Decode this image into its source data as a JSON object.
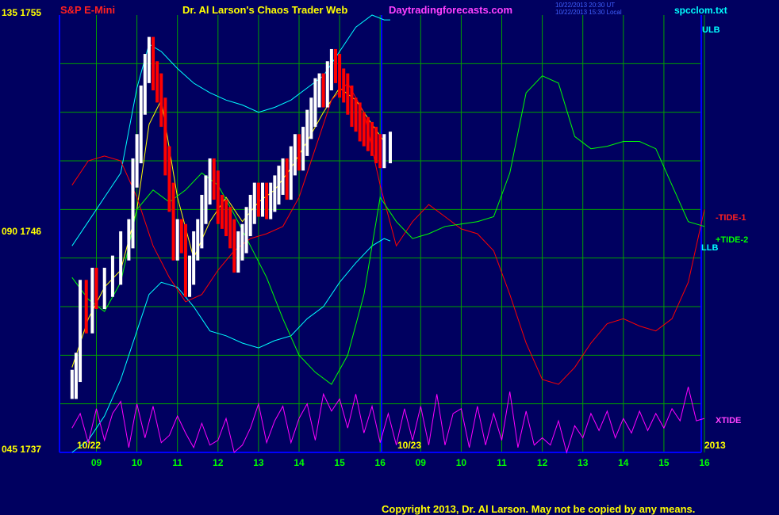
{
  "header": {
    "symbol": "S&P E-Mini",
    "title": "Dr. Al Larson's Chaos Trader Web",
    "site": "Daytradingforecasts.com",
    "stamp_line1": "10/22/2013 20:30 UT",
    "stamp_line2": "10/22/2013 15:30 Local",
    "file": "spcclom.txt"
  },
  "y_axis": {
    "top_label": "135 1755",
    "mid_label": "090 1746",
    "bottom_label": "045 1737"
  },
  "x_axis": {
    "date_left": "10/22",
    "date_mid": "10/23",
    "year": "2013",
    "hour_ticks": [
      "09",
      "10",
      "11",
      "12",
      "13",
      "14",
      "15",
      "16",
      "09",
      "10",
      "11",
      "12",
      "13",
      "14",
      "15",
      "16"
    ]
  },
  "right_labels": {
    "ulb": "ULB",
    "tide1": "-TIDE-1",
    "tide2": "+TIDE-2",
    "llb": "LLB",
    "xtide": "XTIDE"
  },
  "footer": {
    "copyright": "Copyright 2013, Dr. Al Larson. May not be copied by any means."
  },
  "colors": {
    "background": "#000060",
    "grid": "#00a000",
    "axis": "#0000ff",
    "price_up": "#ffffff",
    "price_down": "#ff0000",
    "tide1": "#ff0000",
    "tide2": "#00ff00",
    "bands": "#00ffff",
    "average": "#ffff00",
    "xtide": "#ff00ff"
  },
  "chart_data": {
    "type": "line",
    "title": "S&P E-Mini",
    "x_unit": "hour of trading session (two sessions: 10/22 and 10/23/2013)",
    "ylim": [
      1737,
      1755
    ],
    "price_series": {
      "name": "S&P E-Mini price",
      "hours": [
        8.4,
        8.5,
        8.6,
        8.75,
        8.9,
        9.0,
        9.2,
        9.4,
        9.6,
        9.8,
        9.9,
        10.0,
        10.1,
        10.2,
        10.3,
        10.4,
        10.5,
        10.6,
        10.7,
        10.8,
        10.9,
        11.0,
        11.1,
        11.2,
        11.3,
        11.4,
        11.5,
        11.6,
        11.7,
        11.8,
        11.9,
        12.0,
        12.1,
        12.2,
        12.3,
        12.4,
        12.5,
        12.6,
        12.7,
        12.8,
        12.9,
        13.0,
        13.1,
        13.2,
        13.3,
        13.4,
        13.5,
        13.6,
        13.7,
        13.8,
        13.9,
        14.0,
        14.1,
        14.2,
        14.3,
        14.4,
        14.5,
        14.6,
        14.7,
        14.8,
        14.9,
        15.0,
        15.1,
        15.2,
        15.3,
        15.4,
        15.5,
        15.6,
        15.7,
        15.8,
        15.9,
        16.0,
        16.1,
        16.25
      ],
      "values": [
        1739.8,
        1740.5,
        1743.5,
        1742.5,
        1744.0,
        1743.5,
        1744.0,
        1744.5,
        1745.5,
        1746.0,
        1748.5,
        1749.5,
        1751.5,
        1752.8,
        1753.5,
        1752.5,
        1752.0,
        1751.0,
        1749.0,
        1747.5,
        1745.5,
        1746.0,
        1745.8,
        1744.0,
        1744.5,
        1745.5,
        1746.0,
        1747.0,
        1747.8,
        1748.5,
        1748.0,
        1747.0,
        1746.8,
        1746.5,
        1746.0,
        1745.0,
        1745.5,
        1745.8,
        1746.5,
        1747.0,
        1747.5,
        1747.3,
        1747.5,
        1747.2,
        1747.5,
        1747.8,
        1748.2,
        1748.5,
        1748.0,
        1749.0,
        1749.5,
        1749.2,
        1749.8,
        1750.5,
        1751.0,
        1751.8,
        1752.0,
        1751.8,
        1752.5,
        1753.0,
        1752.8,
        1752.2,
        1752.0,
        1751.5,
        1751.0,
        1750.8,
        1750.4,
        1750.2,
        1750.0,
        1749.8,
        1749.5,
        1749.3,
        1749.5,
        1749.6
      ]
    },
    "series": [
      {
        "name": "ULB",
        "color": "#00ffff",
        "hours": [
          8.4,
          8.8,
          9.2,
          9.6,
          10.0,
          10.3,
          10.6,
          11.0,
          11.4,
          11.8,
          12.2,
          12.6,
          13.0,
          13.4,
          13.8,
          14.2,
          14.6,
          15.0,
          15.4,
          15.8,
          16.1,
          16.25
        ],
        "values": [
          1745.5,
          1746.5,
          1747.5,
          1748.5,
          1752.0,
          1753.8,
          1753.5,
          1752.8,
          1752.2,
          1751.8,
          1751.5,
          1751.3,
          1751.0,
          1751.2,
          1751.5,
          1752.0,
          1752.5,
          1753.5,
          1754.5,
          1755.0,
          1754.8,
          1754.8
        ]
      },
      {
        "name": "LLB",
        "color": "#00ffff",
        "hours": [
          8.4,
          8.8,
          9.2,
          9.6,
          10.0,
          10.3,
          10.6,
          11.0,
          11.4,
          11.8,
          12.2,
          12.6,
          13.0,
          13.4,
          13.8,
          14.2,
          14.6,
          15.0,
          15.4,
          15.8,
          16.1,
          16.25
        ],
        "values": [
          1737.0,
          1737.5,
          1738.5,
          1740.0,
          1742.0,
          1743.5,
          1744.0,
          1743.8,
          1743.0,
          1742.0,
          1741.8,
          1741.5,
          1741.3,
          1741.6,
          1741.8,
          1742.5,
          1743.0,
          1744.0,
          1744.8,
          1745.5,
          1745.8,
          1745.7
        ]
      },
      {
        "name": "Average",
        "color": "#ffff00",
        "hours": [
          8.4,
          8.8,
          9.2,
          9.6,
          10.0,
          10.3,
          10.6,
          11.0,
          11.4,
          11.8,
          12.2,
          12.6,
          13.0,
          13.4,
          13.8,
          14.2,
          14.6,
          15.0,
          15.4,
          15.8,
          16.1
        ],
        "values": [
          1740.5,
          1742.5,
          1743.8,
          1744.5,
          1747.0,
          1750.5,
          1751.5,
          1747.5,
          1745.0,
          1746.5,
          1747.5,
          1746.5,
          1747.3,
          1747.8,
          1748.7,
          1749.8,
          1751.0,
          1752.0,
          1751.5,
          1750.5,
          1749.8
        ]
      },
      {
        "name": "-TIDE-1",
        "color": "#ff0000",
        "hours": [
          8.4,
          8.8,
          9.2,
          9.6,
          10.0,
          10.4,
          10.8,
          11.2,
          11.6,
          12.0,
          12.4,
          12.8,
          13.2,
          13.6,
          14.0,
          14.4,
          14.8,
          15.2,
          15.6,
          16.0,
          16.4,
          16.8,
          17.2,
          17.6,
          18.0,
          18.4,
          18.8,
          19.2,
          19.6,
          20.0,
          20.4,
          20.8,
          21.2,
          21.6,
          22.0,
          22.4,
          22.8,
          23.2,
          23.6,
          24.0
        ],
        "values": [
          1748.0,
          1749.0,
          1749.2,
          1749.0,
          1747.5,
          1745.5,
          1744.2,
          1743.2,
          1743.5,
          1744.5,
          1745.3,
          1745.8,
          1746.0,
          1746.3,
          1747.5,
          1749.5,
          1751.5,
          1752.2,
          1751.0,
          1748.0,
          1745.5,
          1746.5,
          1747.2,
          1746.7,
          1746.2,
          1746.0,
          1745.3,
          1743.5,
          1741.5,
          1740.0,
          1739.8,
          1740.5,
          1741.5,
          1742.3,
          1742.5,
          1742.2,
          1742.0,
          1742.5,
          1744.0,
          1747.0
        ]
      },
      {
        "name": "+TIDE-2",
        "color": "#00ff00",
        "hours": [
          8.4,
          8.8,
          9.2,
          9.6,
          10.0,
          10.4,
          10.8,
          11.2,
          11.6,
          12.0,
          12.4,
          12.8,
          13.2,
          13.6,
          14.0,
          14.4,
          14.8,
          15.2,
          15.6,
          16.0,
          16.4,
          16.8,
          17.2,
          17.6,
          18.0,
          18.4,
          18.8,
          19.2,
          19.6,
          20.0,
          20.4,
          20.8,
          21.2,
          21.6,
          22.0,
          22.4,
          22.8,
          23.2,
          23.6,
          24.0
        ],
        "values": [
          1744.2,
          1743.3,
          1742.8,
          1744.0,
          1747.0,
          1747.8,
          1747.3,
          1747.8,
          1748.5,
          1748.0,
          1746.8,
          1745.5,
          1744.2,
          1742.5,
          1741.0,
          1740.3,
          1739.8,
          1741.0,
          1743.5,
          1747.5,
          1746.5,
          1745.8,
          1746.0,
          1746.3,
          1746.4,
          1746.5,
          1746.7,
          1748.5,
          1751.8,
          1752.5,
          1752.2,
          1750.0,
          1749.5,
          1749.6,
          1749.8,
          1749.8,
          1749.5,
          1748.0,
          1746.5,
          1746.3
        ]
      },
      {
        "name": "XTIDE",
        "color": "#ff00ff",
        "hours": [
          8.4,
          8.6,
          8.8,
          9.0,
          9.2,
          9.4,
          9.6,
          9.8,
          10.0,
          10.2,
          10.4,
          10.6,
          10.8,
          11.0,
          11.2,
          11.4,
          11.6,
          11.8,
          12.0,
          12.2,
          12.4,
          12.6,
          12.8,
          13.0,
          13.2,
          13.4,
          13.6,
          13.8,
          14.0,
          14.2,
          14.4,
          14.6,
          14.8,
          15.0,
          15.2,
          15.4,
          15.6,
          15.8,
          16.0,
          16.2,
          16.4,
          16.6,
          16.8,
          17.0,
          17.2,
          17.4,
          17.6,
          17.8,
          18.0,
          18.2,
          18.4,
          18.6,
          18.8,
          19.0,
          19.2,
          19.4,
          19.6,
          19.8,
          20.0,
          20.2,
          20.4,
          20.6,
          20.8,
          21.0,
          21.2,
          21.4,
          21.6,
          21.8,
          22.0,
          22.2,
          22.4,
          22.6,
          22.8,
          23.0,
          23.2,
          23.4,
          23.6,
          23.8,
          24.0
        ],
        "values": [
          1738.0,
          1738.6,
          1737.4,
          1738.8,
          1737.5,
          1738.6,
          1739.1,
          1737.2,
          1739.0,
          1737.6,
          1738.9,
          1737.4,
          1737.7,
          1738.5,
          1737.8,
          1737.2,
          1738.2,
          1737.3,
          1737.5,
          1738.4,
          1737.0,
          1737.3,
          1738.0,
          1739.0,
          1737.4,
          1738.3,
          1738.9,
          1737.4,
          1738.4,
          1739.0,
          1737.5,
          1739.4,
          1738.7,
          1739.2,
          1738.0,
          1739.4,
          1737.8,
          1738.9,
          1737.4,
          1738.6,
          1737.3,
          1738.8,
          1737.5,
          1738.9,
          1737.3,
          1739.4,
          1737.3,
          1738.6,
          1738.8,
          1737.2,
          1738.9,
          1737.3,
          1738.6,
          1737.5,
          1739.5,
          1737.2,
          1738.7,
          1737.3,
          1737.6,
          1737.3,
          1738.3,
          1737.0,
          1738.1,
          1737.6,
          1738.6,
          1737.9,
          1738.7,
          1737.6,
          1738.4,
          1737.8,
          1738.7,
          1737.9,
          1738.6,
          1738.0,
          1738.8,
          1738.3,
          1739.7,
          1738.3,
          1738.4
        ]
      }
    ],
    "grid": true,
    "legend": "right-side labels"
  }
}
